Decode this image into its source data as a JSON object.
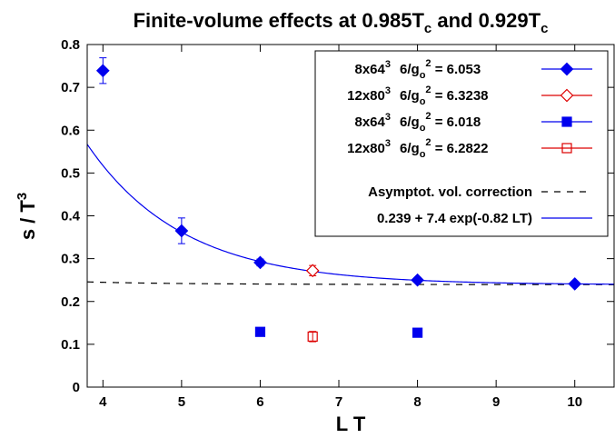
{
  "chart_data": {
    "type": "scatter",
    "title_main": "Finite-volume effects at 0.985T",
    "title_sub1": "c",
    "title_mid": " and 0.929T",
    "title_sub2": "c",
    "xlabel": "L T",
    "ylabel_main": "s / T",
    "ylabel_sup": "3",
    "xlim": [
      3.8,
      10.5
    ],
    "ylim": [
      0,
      0.8
    ],
    "xticks": [
      "4",
      "5",
      "6",
      "7",
      "8",
      "9",
      "10"
    ],
    "xtick_values": [
      4,
      5,
      6,
      7,
      8,
      9,
      10
    ],
    "yticks": [
      "0",
      "0.1",
      "0.2",
      "0.3",
      "0.4",
      "0.5",
      "0.6",
      "0.7",
      "0.8"
    ],
    "ytick_values": [
      0,
      0.1,
      0.2,
      0.3,
      0.4,
      0.5,
      0.6,
      0.7,
      0.8
    ],
    "grid": false,
    "legend_position": "top-right",
    "series": [
      {
        "lattice": "8x64",
        "lattice_sup": "3",
        "coupling_pre": "6/g",
        "coupling_sub": "o",
        "coupling_sup": "2",
        "coupling_val": " = 6.053",
        "marker": "filled-diamond",
        "color": "#0000ee",
        "points": [
          {
            "x": 4,
            "y": 0.739,
            "err": 0.03
          },
          {
            "x": 5,
            "y": 0.365,
            "err": 0.03
          },
          {
            "x": 6,
            "y": 0.291,
            "err": 0.008
          },
          {
            "x": 8,
            "y": 0.25,
            "err": 0.006
          },
          {
            "x": 10,
            "y": 0.241,
            "err": 0.005
          }
        ]
      },
      {
        "lattice": "12x80",
        "lattice_sup": "3",
        "coupling_pre": "6/g",
        "coupling_sub": "o",
        "coupling_sup": "2",
        "coupling_val": " = 6.3238",
        "marker": "open-diamond",
        "color": "#dd0000",
        "points": [
          {
            "x": 6.667,
            "y": 0.272,
            "err": 0.012
          }
        ]
      },
      {
        "lattice": "8x64",
        "lattice_sup": "3",
        "coupling_pre": "6/g",
        "coupling_sub": "o",
        "coupling_sup": "2",
        "coupling_val": " = 6.018",
        "marker": "filled-square",
        "color": "#0000ee",
        "points": [
          {
            "x": 6,
            "y": 0.129,
            "err": 0.005
          },
          {
            "x": 8,
            "y": 0.127,
            "err": 0.005
          }
        ]
      },
      {
        "lattice": "12x80",
        "lattice_sup": "3",
        "coupling_pre": "6/g",
        "coupling_sub": "o",
        "coupling_sup": "2",
        "coupling_val": " = 6.2822",
        "marker": "open-square",
        "color": "#dd0000",
        "points": [
          {
            "x": 6.667,
            "y": 0.118,
            "err": 0.012
          }
        ]
      }
    ],
    "curves": [
      {
        "name": "Asymptot. vol. correction",
        "style": "dashed",
        "color": "#000000",
        "model": "asymptotic",
        "a": 0.239,
        "b": 0.37
      },
      {
        "name": "0.239 + 7.4 exp(-0.82 LT)",
        "style": "solid",
        "color": "#0000ee",
        "model": "exponential",
        "a": 0.239,
        "b": 7.4,
        "c": 0.82
      }
    ]
  }
}
